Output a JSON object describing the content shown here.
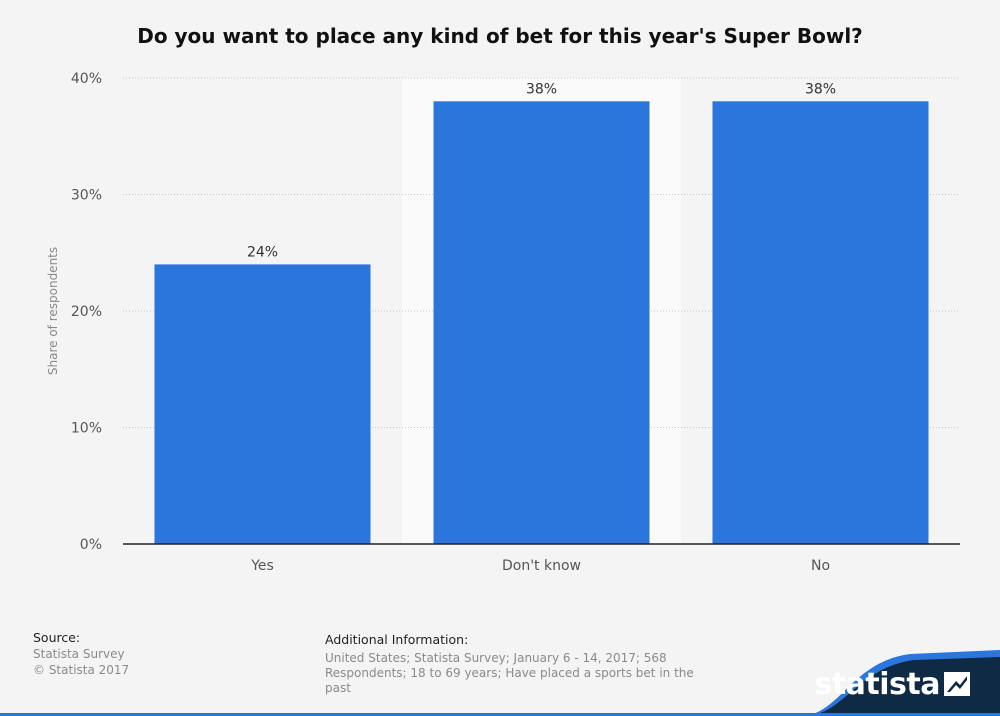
{
  "chart_data": {
    "type": "bar",
    "title": "Do you want to place any kind of bet for this year's Super Bowl?",
    "categories": [
      "Yes",
      "Don't know",
      "No"
    ],
    "values": [
      24,
      38,
      38
    ],
    "value_labels": [
      "24%",
      "38%",
      "38%"
    ],
    "ylabel": "Share of respondents",
    "ylim": [
      0,
      40
    ],
    "yticks": [
      "0%",
      "10%",
      "20%",
      "30%",
      "40%"
    ],
    "grid": true,
    "highlighted_category": "Don't know"
  },
  "colors": {
    "bar": "#2a76dd",
    "highlight_band": "#fafafa",
    "grid": "#c8c8c8",
    "axis": "#222222",
    "brand_dark": "#0f2a45"
  },
  "footer": {
    "source_heading": "Source:",
    "source_line1": "Statista Survey",
    "source_line2": "© Statista 2017",
    "additional_heading": "Additional Information:",
    "additional_text": "United States; Statista Survey; January 6 - 14, 2017; 568 Respondents; 18 to 69 years; Have placed a sports bet in the past"
  },
  "brand": {
    "name": "statista",
    "icon": "statista-logo-icon"
  }
}
